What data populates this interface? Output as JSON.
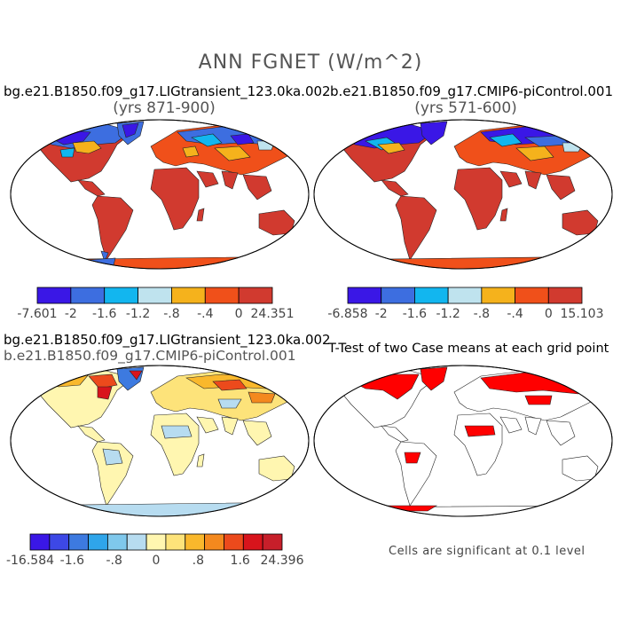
{
  "main_title": "ANN FGNET (W/m^2)",
  "panels": [
    {
      "id": "top-left",
      "title": "bg.e21.B1850.f09_g17.LIGtransient_123.0ka.002",
      "subtitle": "(yrs 871-900)",
      "colorbar": {
        "colors": [
          "#3a17e6",
          "#3d6ee0",
          "#12b6ef",
          "#bfe3ee",
          "#f5b21c",
          "#f0501a",
          "#d13a2f"
        ],
        "labels": [
          "-7.601",
          "-2",
          "-1.6",
          "-1.2",
          "-.8",
          "-.4",
          "0",
          "24.351"
        ]
      }
    },
    {
      "id": "top-right",
      "title": "b.e21.B1850.f09_g17.CMIP6-piControl.001",
      "subtitle": "(yrs 571-600)",
      "colorbar": {
        "colors": [
          "#3a17e6",
          "#3d6ee0",
          "#12b6ef",
          "#bfe3ee",
          "#f5b21c",
          "#f0501a",
          "#d13a2f"
        ],
        "labels": [
          "-6.858",
          "-2",
          "-1.6",
          "-1.2",
          "-.8",
          "-.4",
          "0",
          "15.103"
        ]
      }
    },
    {
      "id": "bottom-left",
      "title": "bg.e21.B1850.f09_g17.LIGtransient_123.0ka.002",
      "subtitle": "b.e21.B1850.f09_g17.CMIP6-piControl.001",
      "colorbar": {
        "colors": [
          "#3a17e6",
          "#3d48e6",
          "#3d7ae0",
          "#2fa5ea",
          "#7fc8ec",
          "#b7dcf0",
          "#fff6b0",
          "#fde37a",
          "#f9b82c",
          "#f4891e",
          "#ec4a1c",
          "#d8141c",
          "#c71f2a"
        ],
        "labels": [
          "-16.584",
          "-1.6",
          "-.8",
          "0",
          ".8",
          "1.6",
          "24.396"
        ]
      }
    },
    {
      "id": "bottom-right",
      "title": "T-Test of two Case means at each grid point",
      "note": "Cells are significant at 0.1 level"
    }
  ]
}
